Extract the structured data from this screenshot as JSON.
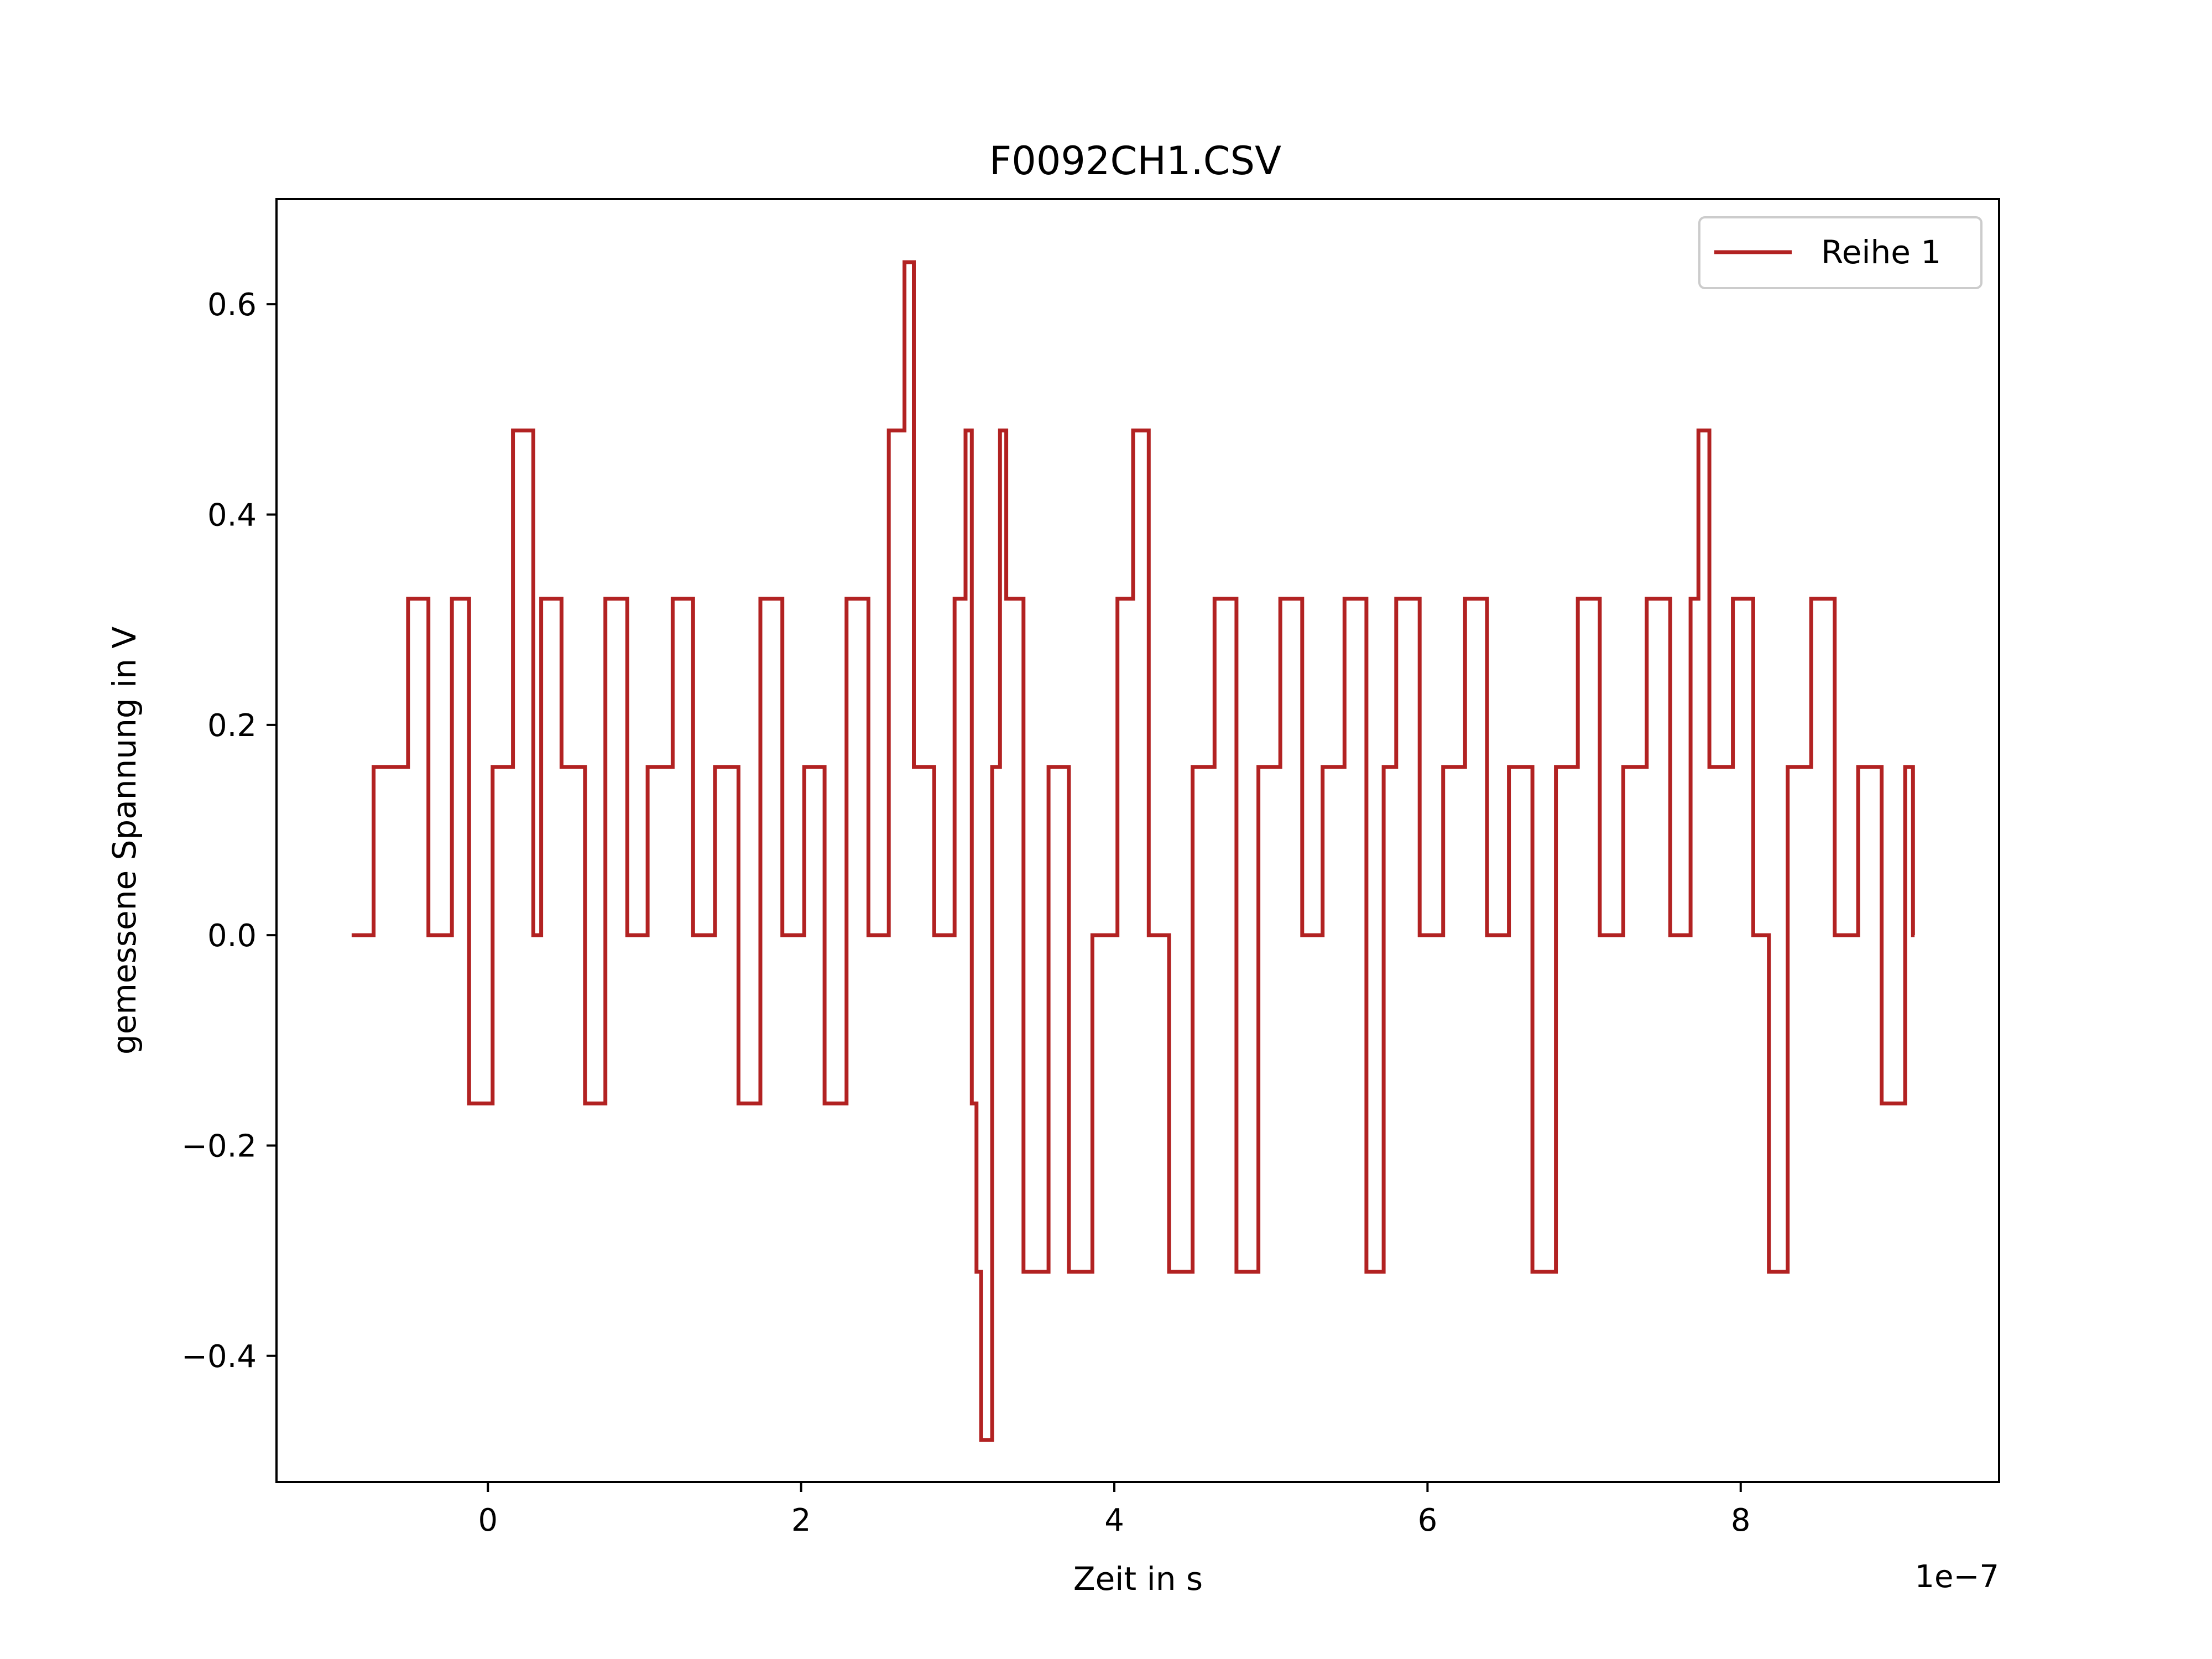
{
  "chart_data": {
    "type": "line",
    "title": "F0092CH1.CSV",
    "xlabel": "Zeit in s",
    "ylabel": "gemessene Spannung in V",
    "x_offset_label": "1e−7",
    "x_scale": 1e-07,
    "xlim": [
      -1.35e-07,
      9.65e-07
    ],
    "ylim": [
      -0.52,
      0.7
    ],
    "x_ticks": [
      0,
      2e-07,
      4e-07,
      6e-07,
      8e-07
    ],
    "x_tick_labels": [
      "0",
      "2",
      "4",
      "6",
      "8"
    ],
    "y_ticks": [
      -0.4,
      -0.2,
      0.0,
      0.2,
      0.4,
      0.6
    ],
    "y_tick_labels": [
      "−0.4",
      "−0.2",
      "0.0",
      "0.2",
      "0.4",
      "0.6"
    ],
    "grid": false,
    "legend_position": "top-right",
    "line_color": "#b22222",
    "series": [
      {
        "name": "Reihe 1",
        "x": [
          -8.7e-08,
          -7.3e-08,
          -5.1e-08,
          -3.8e-08,
          -2.3e-08,
          -1.2e-08,
          3e-09,
          1.6e-08,
          2.9e-08,
          3.4e-08,
          4.7e-08,
          6.2e-08,
          7.5e-08,
          8.9e-08,
          1.02e-07,
          1.18e-07,
          1.31e-07,
          1.45e-07,
          1.6e-07,
          1.74e-07,
          1.88e-07,
          2.02e-07,
          2.15e-07,
          2.29e-07,
          2.43e-07,
          2.56e-07,
          2.62e-07,
          2.66e-07,
          2.72e-07,
          2.85e-07,
          2.98e-07,
          3.05e-07,
          3.09e-07,
          3.12e-07,
          3.15e-07,
          3.22e-07,
          3.27e-07,
          3.31e-07,
          3.42e-07,
          3.58e-07,
          3.71e-07,
          3.86e-07,
          4.02e-07,
          4.12e-07,
          4.22e-07,
          4.35e-07,
          4.5e-07,
          4.64e-07,
          4.78e-07,
          4.92e-07,
          5.06e-07,
          5.2e-07,
          5.33e-07,
          5.47e-07,
          5.61e-07,
          5.72e-07,
          5.8e-07,
          5.95e-07,
          6.1e-07,
          6.24e-07,
          6.38e-07,
          6.52e-07,
          6.67e-07,
          6.82e-07,
          6.96e-07,
          7.1e-07,
          7.25e-07,
          7.4e-07,
          7.55e-07,
          7.68e-07,
          7.73e-07,
          7.8e-07,
          7.95e-07,
          8.08e-07,
          8.18e-07,
          8.3e-07,
          8.45e-07,
          8.6e-07,
          8.75e-07,
          8.9e-07,
          9.05e-07,
          9.1e-07
        ],
        "values": [
          0.0,
          0.16,
          0.32,
          0.0,
          0.32,
          -0.16,
          0.16,
          0.48,
          0.0,
          0.32,
          0.16,
          -0.16,
          0.32,
          0.0,
          0.16,
          0.32,
          0.0,
          0.16,
          -0.16,
          0.32,
          0.0,
          0.16,
          -0.16,
          0.32,
          0.0,
          0.48,
          0.48,
          0.64,
          0.16,
          0.0,
          0.32,
          0.48,
          -0.16,
          -0.32,
          -0.48,
          0.16,
          0.48,
          0.32,
          -0.32,
          0.16,
          -0.32,
          0.0,
          0.32,
          0.48,
          0.0,
          -0.32,
          0.16,
          0.32,
          -0.32,
          0.16,
          0.32,
          0.0,
          0.16,
          0.32,
          -0.32,
          0.16,
          0.32,
          0.0,
          0.16,
          0.32,
          0.0,
          0.16,
          -0.32,
          0.16,
          0.32,
          0.0,
          0.16,
          0.32,
          0.0,
          0.32,
          0.48,
          0.16,
          0.32,
          0.0,
          -0.32,
          0.16,
          0.32,
          0.0,
          0.16,
          -0.16,
          0.16,
          0.0
        ]
      }
    ]
  }
}
